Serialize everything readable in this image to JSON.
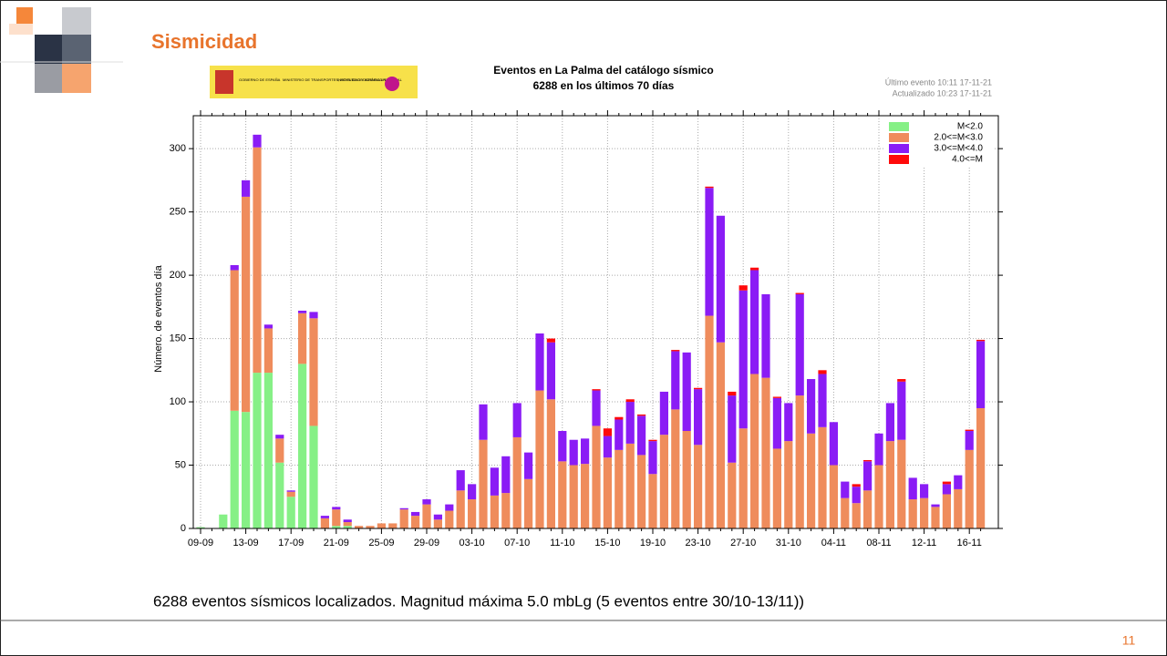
{
  "slide": {
    "title": "Sismicidad",
    "logos": [
      "GOBIERNO DE ESPAÑA",
      "MINISTERIO DE TRANSPORTES, MOVILIDAD Y AGENDA URBANA",
      "INSTITUTO GEOGRÁFICO NACIONAL"
    ],
    "caption": "6288 eventos sísmicos localizados.  Magnitud máxima 5.0 mbLg  (5 eventos  entre 30/10-13/11))",
    "page_number": "11"
  },
  "chart_data": {
    "type": "stacked-bar",
    "title": "Eventos en La Palma del catálogo sísmico",
    "subtitle": "6288 en los últimos 70 días",
    "annotations": [
      "Último evento 10:11 17-11-21",
      "Actualizado    10:23  17-11-21"
    ],
    "y_label": "Número. de eventos día",
    "categories": [
      "09-09",
      null,
      null,
      null,
      "13-09",
      null,
      null,
      null,
      "17-09",
      null,
      null,
      null,
      "21-09",
      null,
      null,
      null,
      "25-09",
      null,
      null,
      null,
      "29-09",
      null,
      null,
      null,
      "03-10",
      null,
      null,
      null,
      "07-10",
      null,
      null,
      null,
      "11-10",
      null,
      null,
      null,
      "15-10",
      null,
      null,
      null,
      "19-10",
      null,
      null,
      null,
      "23-10",
      null,
      null,
      null,
      "27-10",
      null,
      null,
      null,
      "31-10",
      null,
      null,
      null,
      "04-11",
      null,
      null,
      null,
      "08-11",
      null,
      null,
      null,
      "12-11",
      null,
      null,
      null,
      "16-11",
      null
    ],
    "series": [
      {
        "name": "M<2.0",
        "color": "#86f086",
        "values": [
          1,
          0,
          11,
          93,
          92,
          123,
          123,
          52,
          25,
          130,
          81,
          0,
          2,
          2,
          0,
          0,
          0,
          0,
          0,
          0,
          0,
          0,
          0,
          0,
          0,
          0,
          0,
          0,
          0,
          0,
          0,
          0,
          0,
          0,
          0,
          0,
          0,
          0,
          0,
          0,
          0,
          0,
          0,
          0,
          0,
          0,
          0,
          0,
          0,
          0,
          0,
          0,
          0,
          0,
          0,
          0,
          0,
          0,
          0,
          0,
          0,
          0,
          0,
          0,
          0,
          0,
          0,
          0,
          0,
          0
        ]
      },
      {
        "name": "2.0<=M<3.0",
        "color": "#ef8c5c",
        "values": [
          0,
          0,
          0,
          111,
          170,
          178,
          35,
          19,
          4,
          40,
          85,
          8,
          13,
          3,
          2,
          2,
          4,
          4,
          15,
          10,
          19,
          7,
          14,
          30,
          23,
          70,
          26,
          28,
          72,
          39,
          109,
          102,
          53,
          50,
          51,
          81,
          56,
          62,
          67,
          58,
          43,
          74,
          94,
          77,
          66,
          168,
          147,
          52,
          79,
          122,
          119,
          63,
          69,
          105,
          75,
          80,
          50,
          24,
          20,
          30,
          50,
          69,
          70,
          23,
          24,
          17,
          27,
          31,
          62,
          95
        ]
      },
      {
        "name": "3.0<=M<4.0",
        "color": "#8a1cf5",
        "values": [
          0,
          0,
          0,
          4,
          13,
          10,
          3,
          3,
          1,
          2,
          5,
          2,
          2,
          2,
          0,
          0,
          0,
          0,
          1,
          3,
          4,
          4,
          5,
          16,
          12,
          28,
          22,
          29,
          27,
          21,
          45,
          45,
          24,
          20,
          20,
          28,
          17,
          24,
          33,
          31,
          26,
          34,
          46,
          62,
          44,
          101,
          100,
          53,
          109,
          82,
          66,
          40,
          30,
          80,
          43,
          42,
          34,
          13,
          13,
          23,
          25,
          30,
          46,
          17,
          11,
          2,
          8,
          11,
          15,
          53
        ]
      },
      {
        "name": "4.0<=M",
        "color": "#ff0a0a",
        "values": [
          0,
          0,
          0,
          0,
          0,
          0,
          0,
          0,
          0,
          0,
          0,
          0,
          0,
          0,
          0,
          0,
          0,
          0,
          0,
          0,
          0,
          0,
          0,
          0,
          0,
          0,
          0,
          0,
          0,
          0,
          0,
          3,
          0,
          0,
          0,
          1,
          6,
          2,
          2,
          1,
          1,
          0,
          1,
          0,
          1,
          1,
          0,
          3,
          4,
          2,
          0,
          1,
          0,
          1,
          0,
          3,
          0,
          0,
          2,
          1,
          0,
          0,
          2,
          0,
          0,
          0,
          2,
          0,
          1,
          1
        ]
      }
    ],
    "ylim": [
      0,
      326
    ],
    "yticks": [
      0,
      50,
      100,
      150,
      200,
      250,
      300
    ],
    "grid": true,
    "legend": "upper right"
  }
}
